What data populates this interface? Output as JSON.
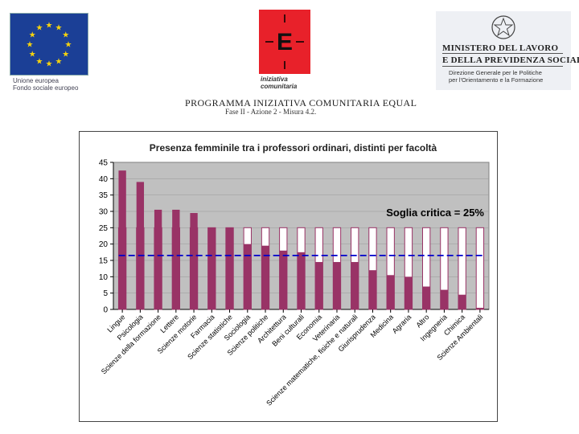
{
  "logos": {
    "eu": {
      "caption_line1": "Unione europea",
      "caption_line2": "Fondo sociale europeo",
      "flag_color": "#1b3f96",
      "star_color": "#f5d20f"
    },
    "equal": {
      "letter": "E",
      "caption_line1": "iniziativa",
      "caption_line2": "comunitaria",
      "color": "#e8212a"
    },
    "ministry": {
      "line1": "MINISTERO DEL LAVORO",
      "line2": "E DELLA PREVIDENZA SOCIALE",
      "line3": "Direzione Generale per le Politiche",
      "line4": "per l'Orientamento e la Formazione"
    }
  },
  "program": {
    "title": "PROGRAMMA INIZIATIVA COMUNITARIA EQUAL",
    "subtitle": "Fase II - Azione 2 - Misura 4.2."
  },
  "colors": {
    "bar": "#993366",
    "plot_bg": "#c0c0c0",
    "threshold": "#0000cc",
    "grid": "#000000"
  },
  "chart_data": {
    "type": "bar",
    "title": "Presenza femminile tra i professori ordinari, distinti per facoltà",
    "xlabel": "",
    "ylabel": "",
    "ylim": [
      0,
      45
    ],
    "yticks": [
      0,
      5,
      10,
      15,
      20,
      25,
      30,
      35,
      40,
      45
    ],
    "categories": [
      "Lingue",
      "Psicologia",
      "Scienze della formazione",
      "Lettere",
      "Scienze motorie",
      "Farmacia",
      "Scienze statistiche",
      "Sociologia",
      "Scienze politiche",
      "Architettura",
      "Beni culturali",
      "Economia",
      "Veterinaria",
      "Scienze matematiche, fisiche e naturali",
      "Giurisprudenza",
      "Medicina",
      "Agraria",
      "Altro",
      "Ingegneria",
      "Chimica",
      "Scienze Ambientali"
    ],
    "values": [
      42.5,
      39,
      30.5,
      30.5,
      29.5,
      25,
      25,
      20,
      19.5,
      18,
      17.5,
      14.5,
      14.5,
      14.5,
      12,
      10.5,
      10,
      7,
      6,
      4.5,
      0.5
    ],
    "critical_threshold": 25,
    "annotation": "Soglia critica = 25%",
    "average_line": 16.5
  }
}
